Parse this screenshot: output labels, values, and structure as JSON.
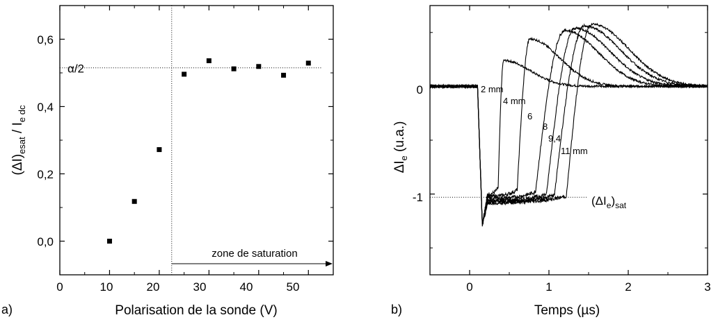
{
  "chart_data": [
    {
      "type": "scatter",
      "panel_label": "a)",
      "xlabel": "Polarisation de la sonde (V)",
      "ylabel": "(ΔI)esat / Ie dc",
      "xlim": [
        0,
        55
      ],
      "ylim": [
        -0.1,
        0.7
      ],
      "xticks": [
        0,
        10,
        20,
        30,
        40,
        50
      ],
      "xtick_labels": [
        "0",
        "10",
        "20",
        "30",
        "40",
        "50"
      ],
      "yticks": [
        0.0,
        0.2,
        0.4,
        0.6
      ],
      "ytick_labels": [
        "0,0",
        "0,2",
        "0,4",
        "0,6"
      ],
      "points": {
        "x": [
          10,
          15,
          20,
          25,
          30,
          35,
          40,
          45,
          50
        ],
        "y": [
          0.0,
          0.118,
          0.272,
          0.496,
          0.536,
          0.512,
          0.519,
          0.493,
          0.529
        ]
      },
      "alpha_half": {
        "label": "α/2",
        "value": 0.515
      },
      "saturation_threshold_V": 22.5,
      "zone_label": "zone de saturation",
      "grid": false,
      "marker_color": "#000000"
    },
    {
      "type": "line",
      "panel_label": "b)",
      "xlabel": "Temps (µs)",
      "ylabel": "ΔIe (u.a.)",
      "xlim": [
        -0.5,
        3
      ],
      "ylim": [
        -1.75,
        0.75
      ],
      "xticks": [
        0,
        1,
        2,
        3
      ],
      "xtick_labels": [
        "0",
        "1",
        "2",
        "3"
      ],
      "yticks": [
        0,
        -1
      ],
      "ytick_labels": [
        "0",
        "-1"
      ],
      "saturation_level": -1.03,
      "saturation_label": "(ΔIe)sat",
      "series": [
        {
          "name": "2 mm",
          "rise_time": 0.36,
          "peak_time": 0.43,
          "peak": 0.24,
          "min_value": -1.0
        },
        {
          "name": "4 mm",
          "rise_time": 0.6,
          "peak_time": 0.76,
          "peak": 0.44,
          "min_value": -1.02
        },
        {
          "name": "6",
          "rise_time": 0.83,
          "peak_time": 1.2,
          "peak": 0.52,
          "min_value": -1.04
        },
        {
          "name": "8",
          "rise_time": 0.97,
          "peak_time": 1.33,
          "peak": 0.54,
          "min_value": -1.06
        },
        {
          "name": "9,4",
          "rise_time": 1.07,
          "peak_time": 1.45,
          "peak": 0.56,
          "min_value": -1.07
        },
        {
          "name": "11 mm",
          "rise_time": 1.22,
          "peak_time": 1.54,
          "peak": 0.58,
          "min_value": -1.08
        }
      ],
      "series_color": "#000000",
      "grid": false
    }
  ]
}
